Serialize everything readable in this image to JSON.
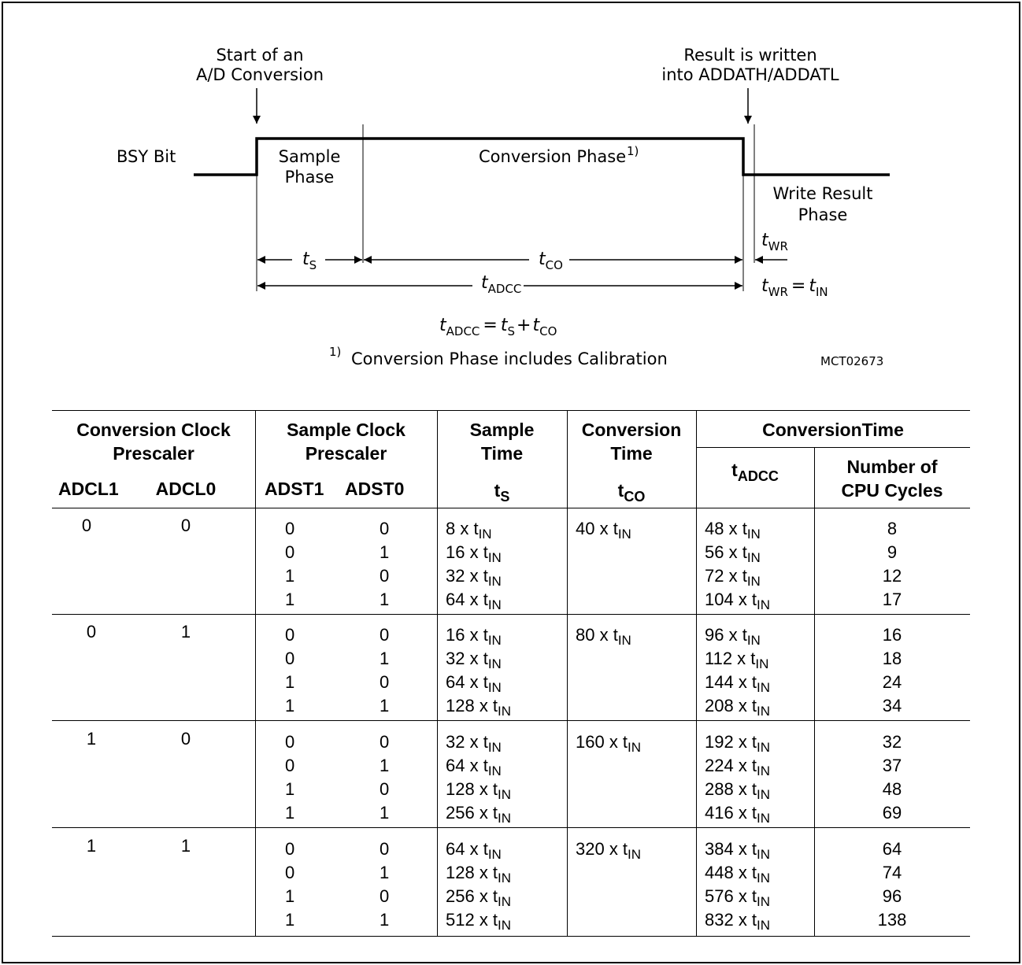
{
  "diagram": {
    "start_label": [
      "Start of an",
      "A/D Conversion"
    ],
    "result_label": [
      "Result is written",
      "into ADDATH/ADDATL"
    ],
    "bsy_label": "BSY Bit",
    "sample_phase": [
      "Sample",
      "Phase"
    ],
    "conversion_phase": "Conversion Phase",
    "footnote_marker": "1)",
    "write_result_phase": [
      "Write Result",
      "Phase"
    ],
    "t_symbol": "t",
    "sub_s": "S",
    "sub_co": "CO",
    "sub_adcc": "ADCC",
    "sub_wr": "WR",
    "sub_in": "IN",
    "equals_plus": [
      "=",
      "+"
    ],
    "footnote_text": "Conversion Phase includes Calibration",
    "figure_id": "MCT02673"
  },
  "table": {
    "headers": {
      "conv_clock": [
        "Conversion Clock",
        "Prescaler"
      ],
      "sample_clock": [
        "Sample Clock",
        "Prescaler"
      ],
      "sample_time": [
        "Sample",
        "Time"
      ],
      "conversion_time_col": [
        "Conversion",
        "Time"
      ],
      "conversion_time_group": "ConversionTime",
      "adcl1": "ADCL1",
      "adcl0": "ADCL0",
      "adst1": "ADST1",
      "adst0": "ADST0",
      "ts": "t",
      "ts_sub": "S",
      "tco": "t",
      "tco_sub": "CO",
      "tadcc": "t",
      "tadcc_sub": "ADCC",
      "cpu_cycles": [
        "Number of",
        "CPU Cycles"
      ]
    },
    "groups": [
      {
        "adcl1": "0",
        "adcl0": "0",
        "tco": "40 x t",
        "rows": [
          {
            "adst1": "0",
            "adst0": "0",
            "ts": "8 x t",
            "tadcc": "48 x t",
            "cycles": "8"
          },
          {
            "adst1": "0",
            "adst0": "1",
            "ts": "16 x t",
            "tadcc": "56 x t",
            "cycles": "9"
          },
          {
            "adst1": "1",
            "adst0": "0",
            "ts": "32 x t",
            "tadcc": "72 x t",
            "cycles": "12"
          },
          {
            "adst1": "1",
            "adst0": "1",
            "ts": "64 x t",
            "tadcc": "104 x t",
            "cycles": "17"
          }
        ]
      },
      {
        "adcl1": "0",
        "adcl0": "1",
        "tco": "80 x t",
        "rows": [
          {
            "adst1": "0",
            "adst0": "0",
            "ts": "16 x t",
            "tadcc": "96 x t",
            "cycles": "16"
          },
          {
            "adst1": "0",
            "adst0": "1",
            "ts": "32 x t",
            "tadcc": "112 x t",
            "cycles": "18"
          },
          {
            "adst1": "1",
            "adst0": "0",
            "ts": "64 x t",
            "tadcc": "144 x t",
            "cycles": "24"
          },
          {
            "adst1": "1",
            "adst0": "1",
            "ts": "128 x t",
            "tadcc": "208 x t",
            "cycles": "34"
          }
        ]
      },
      {
        "adcl1": "1",
        "adcl0": "0",
        "tco": "160 x t",
        "rows": [
          {
            "adst1": "0",
            "adst0": "0",
            "ts": "32 x t",
            "tadcc": "192 x t",
            "cycles": "32"
          },
          {
            "adst1": "0",
            "adst0": "1",
            "ts": "64 x t",
            "tadcc": "224 x t",
            "cycles": "37"
          },
          {
            "adst1": "1",
            "adst0": "0",
            "ts": "128 x t",
            "tadcc": "288 x t",
            "cycles": "48"
          },
          {
            "adst1": "1",
            "adst0": "1",
            "ts": "256 x t",
            "tadcc": "416 x t",
            "cycles": "69"
          }
        ]
      },
      {
        "adcl1": "1",
        "adcl0": "1",
        "tco": "320 x t",
        "rows": [
          {
            "adst1": "0",
            "adst0": "0",
            "ts": "64 x t",
            "tadcc": "384 x t",
            "cycles": "64"
          },
          {
            "adst1": "0",
            "adst0": "1",
            "ts": "128 x t",
            "tadcc": "448 x t",
            "cycles": "74"
          },
          {
            "adst1": "1",
            "adst0": "0",
            "ts": "256 x t",
            "tadcc": "576 x t",
            "cycles": "96"
          },
          {
            "adst1": "1",
            "adst0": "1",
            "ts": "512 x t",
            "tadcc": "832 x t",
            "cycles": "138"
          }
        ]
      }
    ],
    "unit_sub": "IN"
  }
}
